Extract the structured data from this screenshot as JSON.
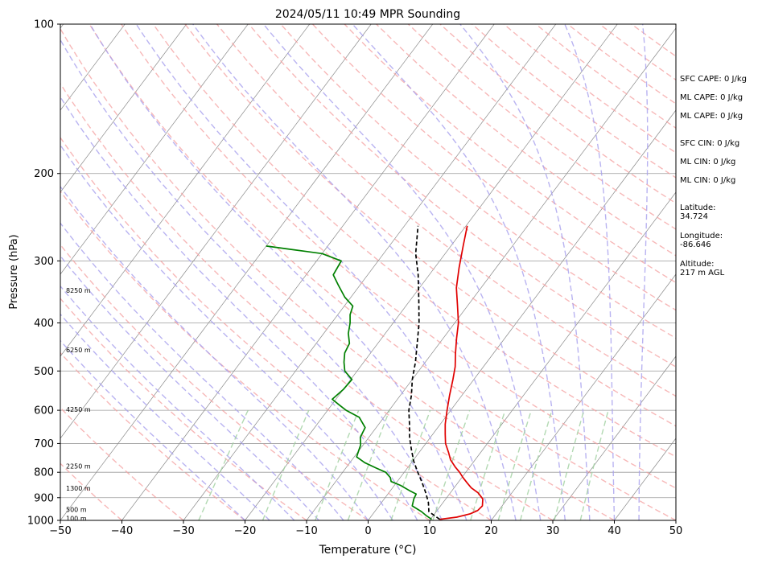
{
  "chart_data": {
    "type": "line",
    "subtype": "skew-t log-p sounding",
    "title": "2024/05/11 10:49 MPR Sounding",
    "xlabel": "Temperature (°C)",
    "ylabel": "Pressure (hPa)",
    "xlim": [
      -50,
      50
    ],
    "ylim": [
      1000,
      100
    ],
    "y_scale": "log",
    "x_ticks": [
      -50,
      -40,
      -30,
      -20,
      -10,
      0,
      10,
      20,
      30,
      40,
      50
    ],
    "y_ticks": [
      100,
      200,
      300,
      400,
      500,
      600,
      700,
      800,
      900,
      1000
    ],
    "grid": true,
    "height_labels": [
      {
        "text": "100 m",
        "p": 995
      },
      {
        "text": "500 m",
        "p": 955
      },
      {
        "text": "1300 m",
        "p": 865
      },
      {
        "text": "2250 m",
        "p": 780
      },
      {
        "text": "4250 m",
        "p": 600
      },
      {
        "text": "6250 m",
        "p": 455
      },
      {
        "text": "8250 m",
        "p": 345
      }
    ],
    "series": [
      {
        "color": "#e00000",
        "points": [
          [
            995,
            11.5
          ],
          [
            985,
            14.0
          ],
          [
            970,
            15.8
          ],
          [
            955,
            16.6
          ],
          [
            935,
            16.8
          ],
          [
            905,
            16.0
          ],
          [
            880,
            14.5
          ],
          [
            860,
            12.8
          ],
          [
            840,
            11.5
          ],
          [
            820,
            10.2
          ],
          [
            800,
            9.0
          ],
          [
            780,
            7.6
          ],
          [
            755,
            6.0
          ],
          [
            730,
            4.8
          ],
          [
            700,
            3.2
          ],
          [
            670,
            2.0
          ],
          [
            640,
            0.8
          ],
          [
            600,
            -0.6
          ],
          [
            560,
            -2.0
          ],
          [
            520,
            -3.4
          ],
          [
            490,
            -4.6
          ],
          [
            460,
            -6.2
          ],
          [
            430,
            -7.8
          ],
          [
            400,
            -9.4
          ],
          [
            370,
            -11.6
          ],
          [
            340,
            -14.0
          ],
          [
            310,
            -16.0
          ],
          [
            280,
            -18.0
          ],
          [
            255,
            -19.8
          ]
        ]
      },
      {
        "color": "#008000",
        "points": [
          [
            995,
            10.2
          ],
          [
            980,
            9.0
          ],
          [
            960,
            7.6
          ],
          [
            935,
            5.4
          ],
          [
            905,
            4.8
          ],
          [
            885,
            4.6
          ],
          [
            870,
            3.0
          ],
          [
            850,
            1.0
          ],
          [
            835,
            -1.0
          ],
          [
            820,
            -1.6
          ],
          [
            800,
            -3.0
          ],
          [
            785,
            -5.0
          ],
          [
            765,
            -7.6
          ],
          [
            745,
            -9.6
          ],
          [
            725,
            -10.0
          ],
          [
            705,
            -10.4
          ],
          [
            680,
            -11.4
          ],
          [
            650,
            -11.8
          ],
          [
            620,
            -14.0
          ],
          [
            600,
            -17.0
          ],
          [
            585,
            -18.8
          ],
          [
            570,
            -20.6
          ],
          [
            545,
            -20.0
          ],
          [
            520,
            -19.8
          ],
          [
            500,
            -22.0
          ],
          [
            480,
            -23.2
          ],
          [
            460,
            -24.2
          ],
          [
            440,
            -24.6
          ],
          [
            420,
            -26.0
          ],
          [
            400,
            -27.0
          ],
          [
            385,
            -28.0
          ],
          [
            370,
            -28.6
          ],
          [
            355,
            -31.0
          ],
          [
            335,
            -33.6
          ],
          [
            320,
            -35.6
          ],
          [
            300,
            -36.0
          ],
          [
            290,
            -40.0
          ],
          [
            285,
            -45.0
          ],
          [
            280,
            -50.0
          ]
        ]
      },
      {
        "color": "#000000",
        "dashed": true,
        "points": [
          [
            995,
            11.5
          ],
          [
            960,
            8.8
          ],
          [
            920,
            7.6
          ],
          [
            880,
            6.0
          ],
          [
            840,
            4.2
          ],
          [
            800,
            2.2
          ],
          [
            760,
            0.2
          ],
          [
            720,
            -1.6
          ],
          [
            680,
            -3.4
          ],
          [
            640,
            -5.0
          ],
          [
            600,
            -6.8
          ],
          [
            560,
            -8.2
          ],
          [
            520,
            -10.0
          ],
          [
            480,
            -11.6
          ],
          [
            440,
            -13.6
          ],
          [
            400,
            -15.8
          ],
          [
            360,
            -18.6
          ],
          [
            320,
            -21.8
          ],
          [
            290,
            -24.8
          ],
          [
            255,
            -27.8
          ]
        ]
      }
    ]
  },
  "annotations": {
    "sfc_cape": "SFC CAPE: 0 J/kg",
    "ml_cape_1": "ML CAPE: 0 J/kg",
    "ml_cape_2": "ML CAPE: 0 J/kg",
    "sfc_cin": "SFC CIN: 0 J/kg",
    "ml_cin_1": "ML CIN: 0 J/kg",
    "ml_cin_2": "ML CIN: 0 J/kg",
    "latitude_label": "Latitude:",
    "latitude_value": "34.724",
    "longitude_label": "Longitude:",
    "longitude_value": "-86.646",
    "altitude_label": "Altitude:",
    "altitude_value": "217 m AGL"
  },
  "colors": {
    "temperature": "#e00000",
    "dewpoint": "#008000",
    "parcel": "#000000",
    "dry_adiabat": "#f4a0a0",
    "moist_adiabat": "#a8a0ee",
    "mixing_ratio": "#9fd09f",
    "isotherm": "#8a8a8a"
  }
}
